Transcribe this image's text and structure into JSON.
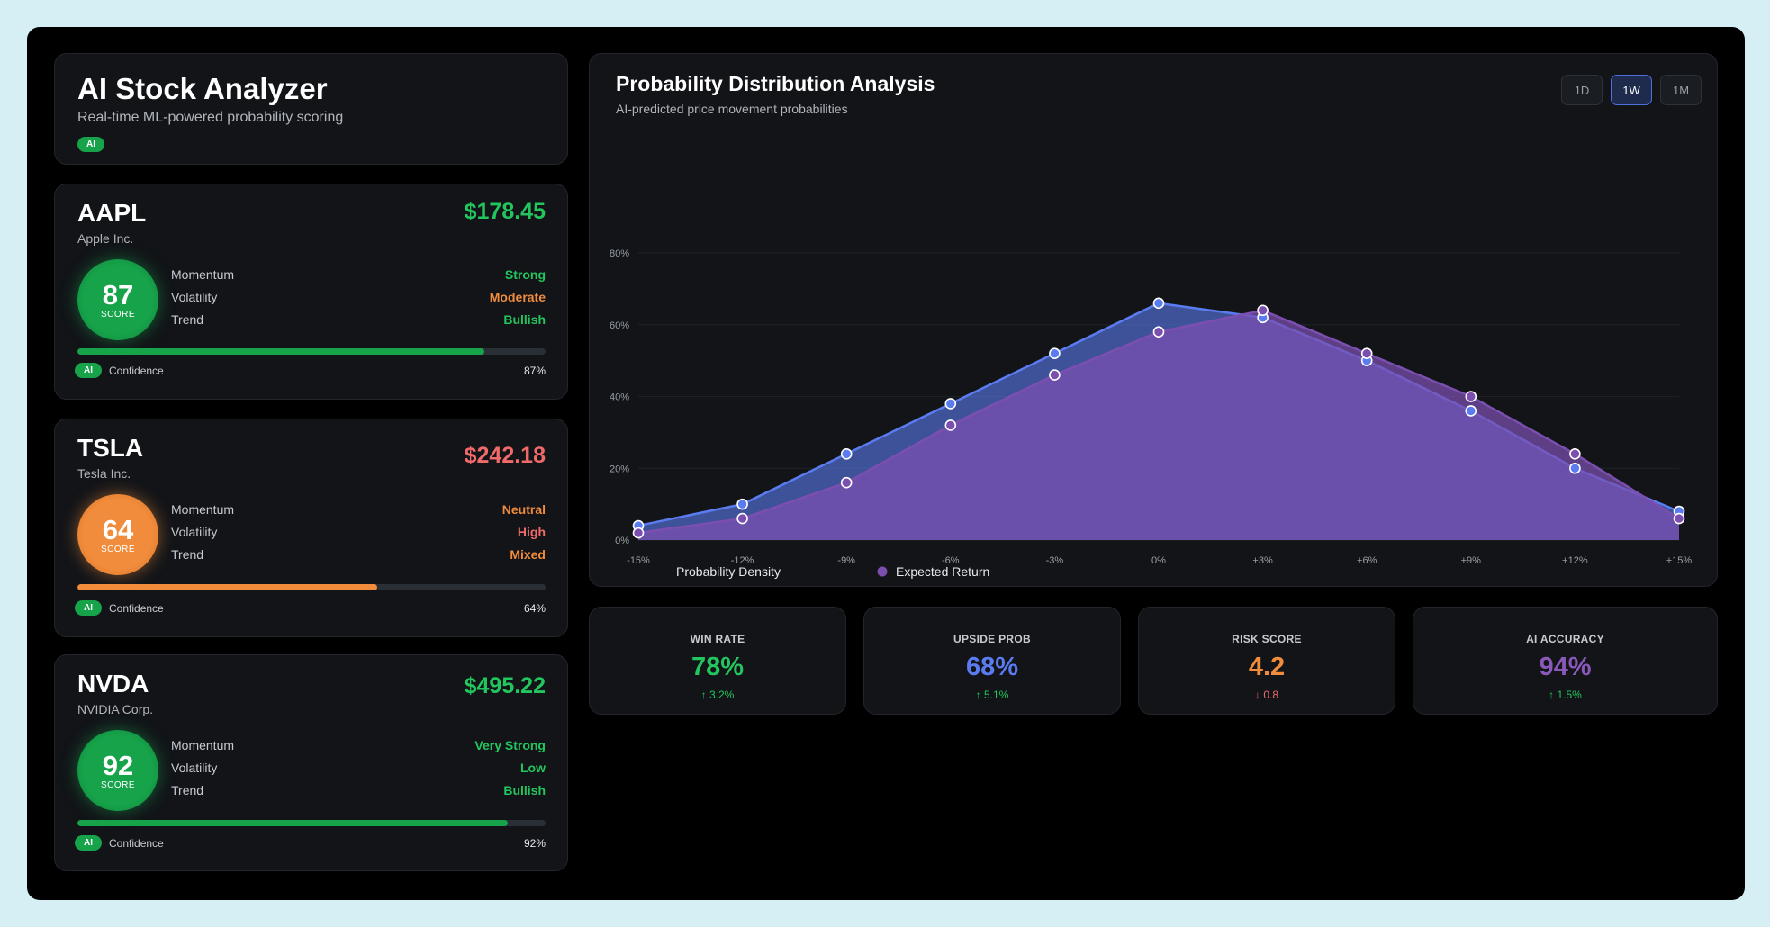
{
  "header": {
    "title": "AI Stock Analyzer",
    "subtitle": "Real-time ML-powered probability scoring",
    "badge": "AI"
  },
  "stocks": [
    {
      "ticker": "AAPL",
      "name": "Apple Inc.",
      "price": "$178.45",
      "score": "87",
      "score_label": "SCORE",
      "metrics": [
        {
          "label": "Momentum",
          "value": "Strong"
        },
        {
          "label": "Volatility",
          "value": "Moderate"
        },
        {
          "label": "Trend",
          "value": "Bullish"
        }
      ],
      "confidence_label": "Confidence",
      "confidence": "87%",
      "confidence_value": 0.87,
      "badge": "AI"
    },
    {
      "ticker": "TSLA",
      "name": "Tesla Inc.",
      "price": "$242.18",
      "score": "64",
      "score_label": "SCORE",
      "metrics": [
        {
          "label": "Momentum",
          "value": "Neutral"
        },
        {
          "label": "Volatility",
          "value": "High"
        },
        {
          "label": "Trend",
          "value": "Mixed"
        }
      ],
      "confidence_label": "Confidence",
      "confidence": "64%",
      "confidence_value": 0.64,
      "badge": "AI"
    },
    {
      "ticker": "NVDA",
      "name": "NVIDIA Corp.",
      "price": "$495.22",
      "score": "92",
      "score_label": "SCORE",
      "metrics": [
        {
          "label": "Momentum",
          "value": "Very Strong"
        },
        {
          "label": "Volatility",
          "value": "Low"
        },
        {
          "label": "Trend",
          "value": "Bullish"
        }
      ],
      "confidence_label": "Confidence",
      "confidence": "92%",
      "confidence_value": 0.92,
      "badge": "AI"
    }
  ],
  "chart_panel": {
    "title": "Probability Distribution Analysis",
    "subtitle": "AI-predicted price movement probabilities",
    "timeframes": [
      "1D",
      "1W",
      "1M"
    ],
    "active_timeframe": "1W"
  },
  "chart_data": {
    "type": "area",
    "x": [
      "-15%",
      "-12%",
      "-9%",
      "-6%",
      "-3%",
      "0%",
      "+3%",
      "+6%",
      "+9%",
      "+12%",
      "+15%"
    ],
    "yticks": [
      "0%",
      "20%",
      "40%",
      "60%",
      "80%"
    ],
    "ylim": [
      0,
      80
    ],
    "grid": true,
    "legend_position": "bottom-left",
    "series": [
      {
        "name": "Probability Density",
        "color": "#5b7cf0",
        "values": [
          4,
          10,
          24,
          38,
          52,
          66,
          62,
          50,
          36,
          20,
          8
        ]
      },
      {
        "name": "Expected Return",
        "color": "#7b4fb0",
        "values": [
          2,
          6,
          16,
          32,
          46,
          58,
          64,
          52,
          40,
          24,
          6
        ]
      }
    ]
  },
  "stats": [
    {
      "label": "WIN RATE",
      "value": "78%",
      "delta": "↑ 3.2%",
      "color": "#22c55e",
      "delta_color": "#22c55e"
    },
    {
      "label": "UPSIDE PROB",
      "value": "68%",
      "delta": "↑ 5.1%",
      "color": "#5b7cf0",
      "delta_color": "#22c55e"
    },
    {
      "label": "RISK SCORE",
      "value": "4.2",
      "delta": "↓ 0.8",
      "color": "#f08c3b",
      "delta_color": "#f06a6a"
    },
    {
      "label": "AI ACCURACY",
      "value": "94%",
      "delta": "↑ 1.5%",
      "color": "#8a58b8",
      "delta_color": "#22c55e"
    }
  ]
}
